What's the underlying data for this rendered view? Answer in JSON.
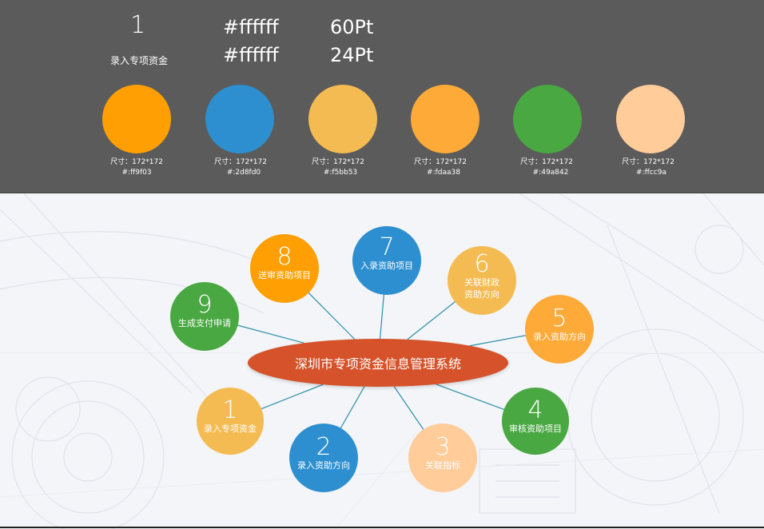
{
  "spec": {
    "number": "1",
    "label": "录入专项资金",
    "color1": "#ffffff",
    "color2": "#ffffff",
    "size1": "60Pt",
    "size2": "24Pt",
    "swatches": [
      {
        "color": "#ff9f03",
        "size": "尺寸：172*172",
        "hex": "#:ff9f03"
      },
      {
        "color": "#2d8fd0",
        "size": "尺寸：172*172",
        "hex": "#:2d8fd0"
      },
      {
        "color": "#f5bb53",
        "size": "尺寸：172*172",
        "hex": "#:f5bb53"
      },
      {
        "color": "#fdaa38",
        "size": "尺寸：172*172",
        "hex": "#:fdaa38"
      },
      {
        "color": "#49a842",
        "size": "尺寸：172*172",
        "hex": "#:49a842"
      },
      {
        "color": "#ffcc9a",
        "size": "尺寸：172*172",
        "hex": "#:ffcc9a"
      }
    ]
  },
  "diagram": {
    "center": {
      "label": "深圳市专项资金信息管理系统",
      "color": "#d5522a"
    },
    "link_color": "#2a8fa8",
    "nodes": [
      {
        "num": "1",
        "label": "录入专项资金",
        "color": "#f5bb53"
      },
      {
        "num": "2",
        "label": "录入资助方向",
        "color": "#2d8fd0"
      },
      {
        "num": "3",
        "label": "关联指标",
        "color": "#ffcc9a"
      },
      {
        "num": "4",
        "label": "审核资助项目",
        "color": "#49a842"
      },
      {
        "num": "5",
        "label": "录入资助方向",
        "color": "#fdaa38"
      },
      {
        "num": "6",
        "label": "关联财政资助方向",
        "color": "#f5bb53"
      },
      {
        "num": "7",
        "label": "入录资助项目",
        "color": "#2d8fd0"
      },
      {
        "num": "8",
        "label": "送审资助项目",
        "color": "#ff9f03"
      },
      {
        "num": "9",
        "label": "生成支付申请",
        "color": "#49a842"
      }
    ]
  }
}
